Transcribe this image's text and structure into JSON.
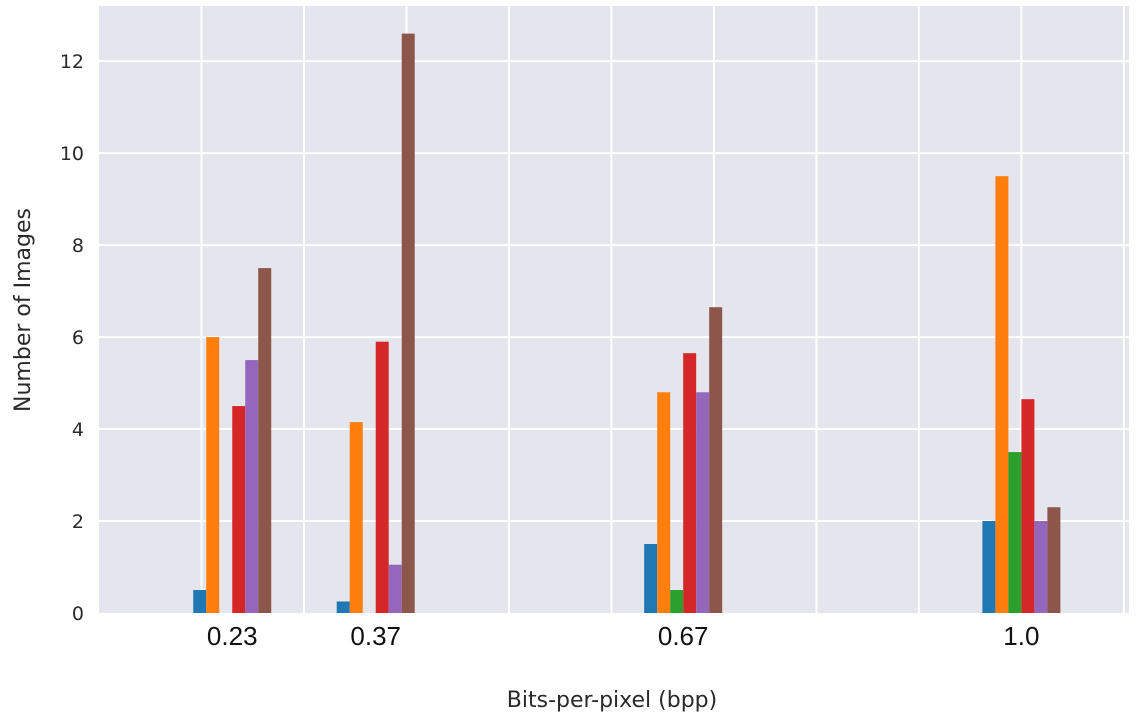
{
  "chart_data": {
    "type": "bar",
    "xlabel": "Bits-per-pixel (bpp)",
    "ylabel": "Number of Images",
    "x_axis": {
      "type": "linear",
      "range": [
        0.1,
        1.105
      ],
      "grid_values": [
        0.2,
        0.3,
        0.4,
        0.5,
        0.6,
        0.7,
        0.8,
        0.9,
        1.0,
        1.1
      ],
      "tick_values": [
        0.23,
        0.37,
        0.67,
        1.0
      ],
      "tick_labels": [
        "0.23",
        "0.37",
        "0.67",
        "1.0"
      ]
    },
    "y_axis": {
      "range": [
        0,
        13.2
      ],
      "ticks": [
        0,
        2,
        4,
        6,
        8,
        10,
        12
      ],
      "tick_labels": [
        "0",
        "2",
        "4",
        "6",
        "8",
        "10",
        "12"
      ]
    },
    "grid": true,
    "legend": "none",
    "series": [
      {
        "color": "#1f77b4",
        "values": [
          0.5,
          0.25,
          1.5,
          2.0
        ]
      },
      {
        "color": "#ff7f0e",
        "values": [
          6.0,
          4.15,
          4.8,
          9.5
        ]
      },
      {
        "color": "#2ca02c",
        "values": [
          0,
          0,
          0.5,
          3.5
        ]
      },
      {
        "color": "#d62728",
        "values": [
          4.5,
          5.9,
          5.65,
          4.65
        ]
      },
      {
        "color": "#9467bd",
        "values": [
          5.5,
          1.05,
          4.8,
          2.0
        ]
      },
      {
        "color": "#8c564b",
        "values": [
          7.5,
          12.6,
          6.65,
          2.3
        ]
      }
    ]
  }
}
